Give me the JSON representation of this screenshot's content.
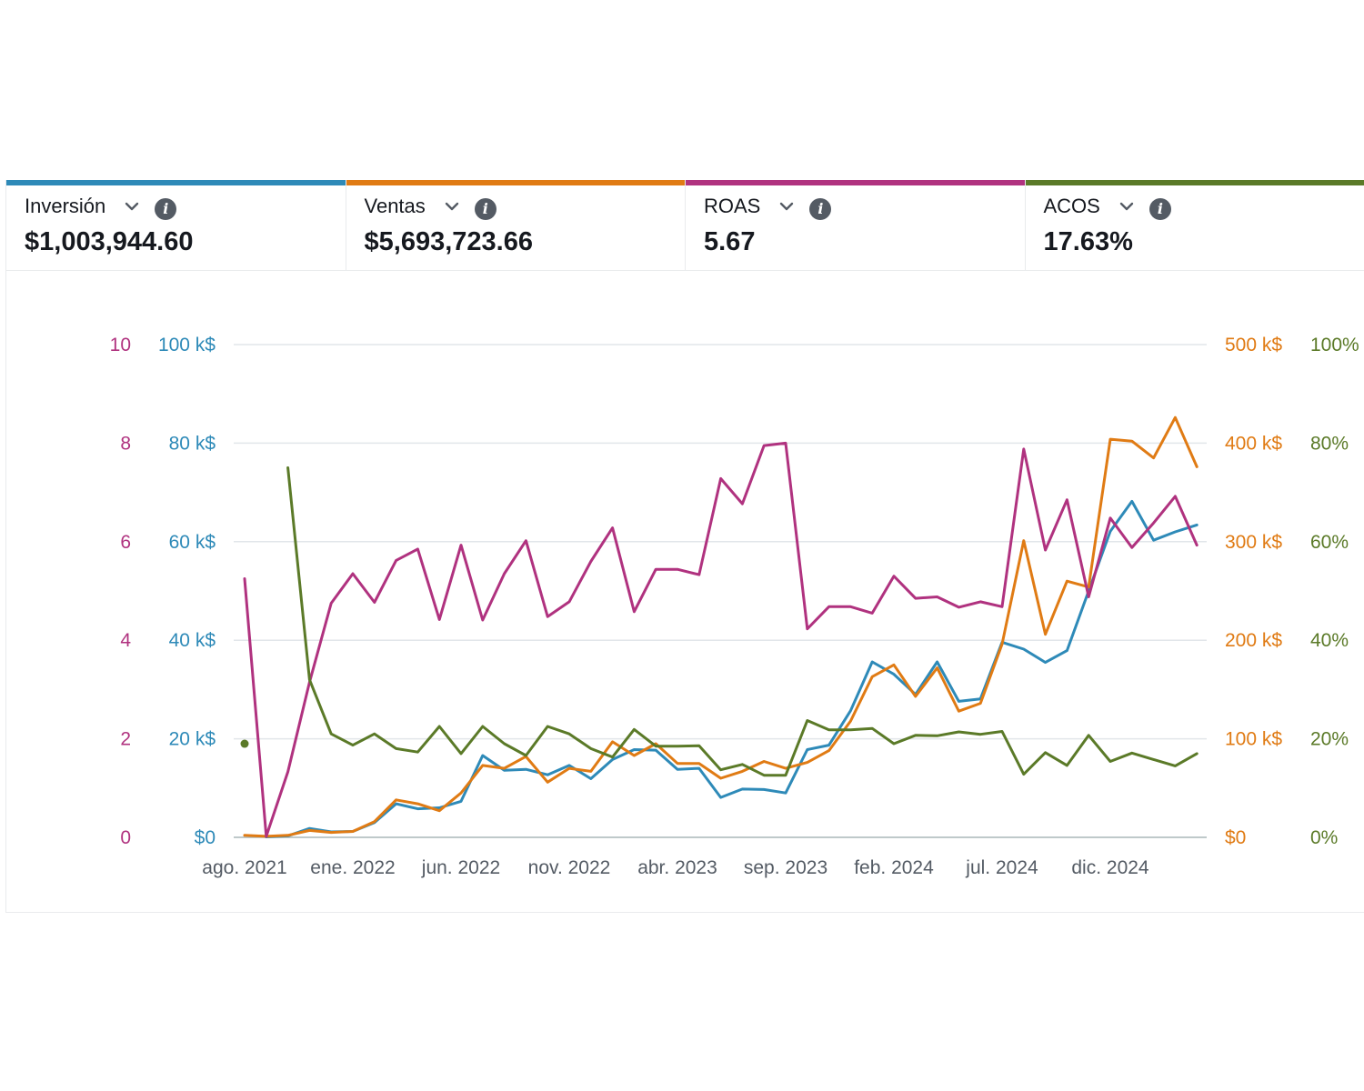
{
  "metrics": [
    {
      "label": "Inversión",
      "value": "$1,003,944.60",
      "color": "#2e8ab8",
      "chevron_icon": "chevron-down-icon",
      "info_icon": "info-icon"
    },
    {
      "label": "Ventas",
      "value": "$5,693,723.66",
      "color": "#e07b14",
      "chevron_icon": "chevron-down-icon",
      "info_icon": "info-icon"
    },
    {
      "label": "ROAS",
      "value": "5.67",
      "color": "#b0327f",
      "chevron_icon": "chevron-down-icon",
      "info_icon": "info-icon"
    },
    {
      "label": "ACOS",
      "value": "17.63%",
      "color": "#5b7a28",
      "chevron_icon": "chevron-down-icon",
      "info_icon": "info-icon"
    }
  ],
  "chart_data": {
    "type": "line",
    "x_tick_labels": [
      "ago. 2021",
      "ene. 2022",
      "jun. 2022",
      "nov. 2022",
      "abr. 2023",
      "sep. 2023",
      "feb. 2024",
      "jul. 2024",
      "dic. 2024"
    ],
    "x_tick_index": [
      0,
      5,
      10,
      15,
      20,
      25,
      30,
      35,
      40
    ],
    "months": [
      "2021-08",
      "2021-09",
      "2021-10",
      "2021-11",
      "2021-12",
      "2022-01",
      "2022-02",
      "2022-03",
      "2022-04",
      "2022-05",
      "2022-06",
      "2022-07",
      "2022-08",
      "2022-09",
      "2022-10",
      "2022-11",
      "2022-12",
      "2023-01",
      "2023-02",
      "2023-03",
      "2023-04",
      "2023-05",
      "2023-06",
      "2023-07",
      "2023-08",
      "2023-09",
      "2023-10",
      "2023-11",
      "2023-12",
      "2024-01",
      "2024-02",
      "2024-03",
      "2024-04",
      "2024-05",
      "2024-06",
      "2024-07",
      "2024-08",
      "2024-09",
      "2024-10",
      "2024-11",
      "2024-12",
      "2025-01",
      "2025-02",
      "2025-03",
      "2025-04"
    ],
    "axes": {
      "roas": {
        "side": "left",
        "ticks": [
          "0",
          "2",
          "4",
          "6",
          "8",
          "10"
        ],
        "range": [
          0,
          10
        ]
      },
      "inversion": {
        "side": "left",
        "ticks": [
          "$0",
          "20 k$",
          "40 k$",
          "60 k$",
          "80 k$",
          "100 k$"
        ],
        "range": [
          0,
          100
        ]
      },
      "ventas": {
        "side": "right",
        "ticks": [
          "$0",
          "100 k$",
          "200 k$",
          "300 k$",
          "400 k$",
          "500 k$"
        ],
        "range": [
          0,
          500
        ]
      },
      "acos": {
        "side": "right",
        "ticks": [
          "0%",
          "20%",
          "40%",
          "60%",
          "80%",
          "100%"
        ],
        "range": [
          0,
          100
        ]
      }
    },
    "grid": true,
    "series": [
      {
        "key": "inversion",
        "axis": "inversion",
        "color": "#2e8ab8",
        "values": [
          null,
          0.1,
          0.3,
          1.8,
          1.1,
          1.2,
          3.0,
          6.8,
          5.8,
          6.0,
          7.3,
          16.6,
          13.6,
          13.8,
          12.7,
          14.6,
          11.9,
          15.8,
          17.8,
          17.7,
          13.8,
          14.0,
          8.1,
          9.8,
          9.7,
          9.0,
          17.8,
          18.7,
          25.7,
          35.6,
          33.1,
          29.0,
          35.6,
          27.6,
          28.1,
          39.6,
          38.2,
          35.5,
          37.9,
          50.0,
          62.1,
          68.2,
          60.3,
          62.0,
          63.4
        ]
      },
      {
        "key": "ventas",
        "axis": "ventas",
        "color": "#e07b14",
        "values": [
          2,
          1,
          2,
          7,
          5,
          6,
          16,
          38,
          34,
          27,
          45,
          73,
          70,
          82,
          56,
          70,
          67,
          97,
          83,
          95,
          75,
          75,
          60,
          67,
          77,
          70,
          76,
          88,
          118,
          163,
          175,
          143,
          172,
          128,
          136,
          196,
          301,
          206,
          260,
          254,
          404,
          402,
          385,
          426,
          376
        ]
      },
      {
        "key": "roas",
        "axis": "roas",
        "color": "#b0327f",
        "values": [
          5.25,
          0.02,
          1.33,
          3.15,
          4.75,
          5.35,
          4.77,
          5.62,
          5.85,
          4.42,
          5.93,
          4.41,
          5.35,
          6.02,
          4.48,
          4.78,
          5.6,
          6.28,
          4.58,
          5.44,
          5.44,
          5.33,
          7.28,
          6.77,
          7.95,
          8.0,
          4.23,
          4.68,
          4.68,
          4.55,
          5.3,
          4.85,
          4.88,
          4.67,
          4.78,
          4.68,
          7.88,
          5.83,
          6.85,
          4.88,
          6.48,
          5.88,
          6.38,
          6.92,
          5.93
        ]
      },
      {
        "key": "acos",
        "axis": "acos",
        "color": "#5b7a28",
        "values": [
          19.0,
          null,
          75.0,
          32.0,
          21.0,
          18.7,
          21.0,
          18.0,
          17.3,
          22.5,
          17.0,
          22.5,
          19.0,
          16.6,
          22.5,
          21.0,
          18.0,
          16.3,
          21.9,
          18.5,
          18.5,
          18.6,
          13.7,
          14.8,
          12.6,
          12.6,
          23.7,
          21.8,
          21.8,
          22.1,
          19.0,
          20.7,
          20.6,
          21.4,
          20.9,
          21.5,
          12.8,
          17.2,
          14.6,
          20.7,
          15.4,
          17.1,
          15.8,
          14.5,
          17.0
        ]
      }
    ]
  }
}
